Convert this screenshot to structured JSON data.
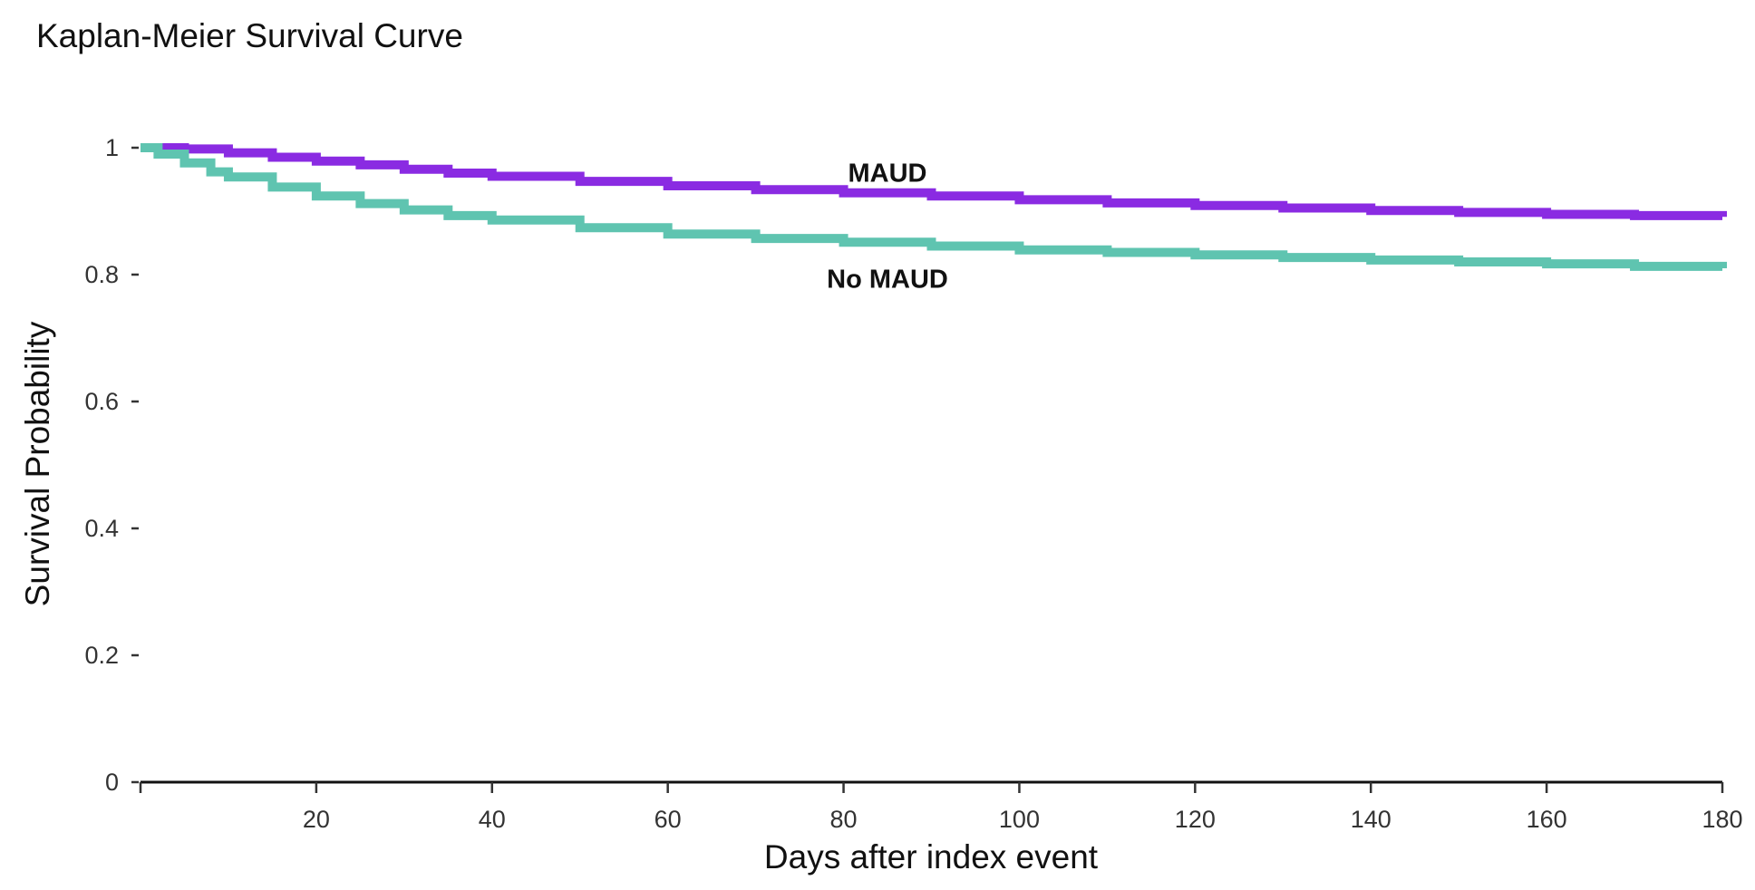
{
  "chart_data": {
    "type": "line",
    "title": "Kaplan-Meier Survival Curve",
    "xlabel": "Days after index event",
    "ylabel": "Survival Probability",
    "xlim": [
      0,
      180
    ],
    "ylim": [
      0,
      1
    ],
    "x_ticks": [
      20,
      40,
      60,
      80,
      100,
      120,
      140,
      160,
      180
    ],
    "y_ticks": [
      0,
      0.2,
      0.4,
      0.6,
      0.8,
      1
    ],
    "y_tick_labels": [
      "0",
      "0.2",
      "0.4",
      "0.6",
      "0.8",
      "1"
    ],
    "step": true,
    "grid": false,
    "legend": "none",
    "series": [
      {
        "name": "MAUD",
        "color": "#8a2be2",
        "x": [
          0,
          5,
          10,
          15,
          20,
          25,
          30,
          35,
          40,
          50,
          60,
          70,
          80,
          90,
          100,
          110,
          120,
          130,
          140,
          150,
          160,
          170,
          180
        ],
        "y": [
          1.0,
          0.998,
          0.992,
          0.985,
          0.979,
          0.973,
          0.966,
          0.96,
          0.955,
          0.947,
          0.94,
          0.934,
          0.929,
          0.924,
          0.918,
          0.913,
          0.909,
          0.905,
          0.901,
          0.898,
          0.895,
          0.893,
          0.891
        ]
      },
      {
        "name": "No MAUD",
        "color": "#5fc4b0",
        "x": [
          0,
          2,
          5,
          8,
          10,
          15,
          20,
          25,
          30,
          35,
          40,
          50,
          60,
          70,
          80,
          90,
          100,
          110,
          120,
          130,
          140,
          150,
          160,
          170,
          180
        ],
        "y": [
          1.0,
          0.99,
          0.976,
          0.962,
          0.954,
          0.938,
          0.924,
          0.912,
          0.902,
          0.893,
          0.886,
          0.874,
          0.864,
          0.857,
          0.851,
          0.845,
          0.839,
          0.835,
          0.831,
          0.827,
          0.823,
          0.82,
          0.817,
          0.813,
          0.81
        ]
      }
    ]
  }
}
